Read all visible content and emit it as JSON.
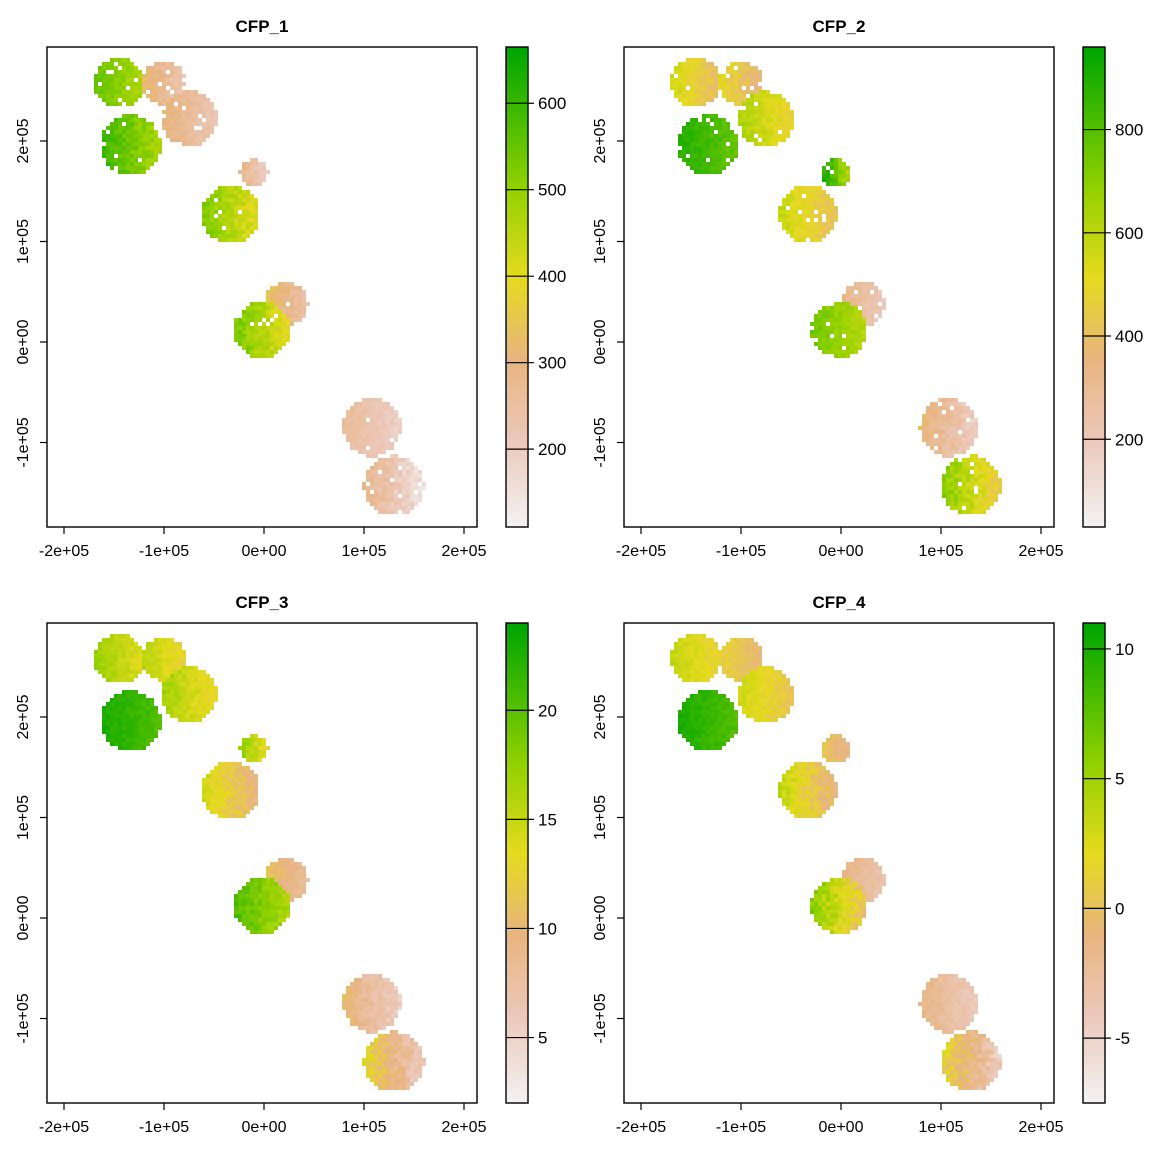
{
  "figure": {
    "background": "#ffffff"
  },
  "chart_data": [
    {
      "type": "heatmap",
      "title": "CFP_1",
      "xlim": [
        -200000,
        200000
      ],
      "ylim": [
        -170000,
        290000
      ],
      "x_ticks": [
        -200000,
        -100000,
        0,
        100000,
        200000
      ],
      "x_tick_labels": [
        "-2e+05",
        "-1e+05",
        "0e+00",
        "1e+05",
        "2e+05"
      ],
      "y_ticks": [
        -100000,
        0,
        100000,
        200000
      ],
      "y_tick_labels": [
        "-1e+05",
        "0e+00",
        "1e+05",
        "2e+05"
      ],
      "colorbar": {
        "min": 110,
        "max": 665,
        "ticks": [
          200,
          300,
          400,
          500,
          600
        ],
        "tick_labels": [
          "200",
          "300",
          "400",
          "500",
          "600"
        ],
        "palette": "terrain (white-pink-tan-yellow-green)"
      },
      "blobs": [
        {
          "x": -145000,
          "y": 258000,
          "r": 25000,
          "v": [
            0.62,
            0.82
          ]
        },
        {
          "x": -100000,
          "y": 258000,
          "r": 22000,
          "v": [
            0.18,
            0.42
          ]
        },
        {
          "x": -75000,
          "y": 222000,
          "r": 28000,
          "v": [
            0.18,
            0.38
          ]
        },
        {
          "x": -133000,
          "y": 196000,
          "r": 30000,
          "v": [
            0.62,
            0.92
          ]
        },
        {
          "x": -10000,
          "y": 168000,
          "r": 14000,
          "v": [
            0.12,
            0.35
          ]
        },
        {
          "x": -33000,
          "y": 127000,
          "r": 29000,
          "v": [
            0.48,
            0.78
          ]
        },
        {
          "x": 22000,
          "y": 38000,
          "r": 22000,
          "v": [
            0.2,
            0.45
          ]
        },
        {
          "x": -2000,
          "y": 12000,
          "r": 28000,
          "v": [
            0.48,
            0.8
          ]
        },
        {
          "x": 108000,
          "y": -85000,
          "r": 29000,
          "v": [
            0.12,
            0.3
          ]
        },
        {
          "x": 130000,
          "y": -143000,
          "r": 30000,
          "v": [
            0.04,
            0.35
          ]
        }
      ]
    },
    {
      "type": "heatmap",
      "title": "CFP_2",
      "xlim": [
        -200000,
        200000
      ],
      "ylim": [
        -170000,
        290000
      ],
      "x_ticks": [
        -200000,
        -100000,
        0,
        100000,
        200000
      ],
      "x_tick_labels": [
        "-2e+05",
        "-1e+05",
        "0e+00",
        "1e+05",
        "2e+05"
      ],
      "y_ticks": [
        -100000,
        0,
        100000,
        200000
      ],
      "y_tick_labels": [
        "-1e+05",
        "0e+00",
        "1e+05",
        "2e+05"
      ],
      "colorbar": {
        "min": 30,
        "max": 960,
        "ticks": [
          200,
          400,
          600,
          800
        ],
        "tick_labels": [
          "200",
          "400",
          "600",
          "800"
        ],
        "palette": "terrain (white-pink-tan-yellow-green)"
      },
      "blobs": [
        {
          "x": -145000,
          "y": 258000,
          "r": 25000,
          "v": [
            0.35,
            0.6
          ]
        },
        {
          "x": -100000,
          "y": 258000,
          "r": 22000,
          "v": [
            0.3,
            0.55
          ]
        },
        {
          "x": -75000,
          "y": 222000,
          "r": 28000,
          "v": [
            0.45,
            0.68
          ]
        },
        {
          "x": -133000,
          "y": 196000,
          "r": 30000,
          "v": [
            0.78,
            0.95
          ]
        },
        {
          "x": -5000,
          "y": 168000,
          "r": 14000,
          "v": [
            0.6,
            0.98
          ]
        },
        {
          "x": -33000,
          "y": 127000,
          "r": 29000,
          "v": [
            0.38,
            0.62
          ]
        },
        {
          "x": 22000,
          "y": 38000,
          "r": 22000,
          "v": [
            0.15,
            0.35
          ]
        },
        {
          "x": -2000,
          "y": 12000,
          "r": 28000,
          "v": [
            0.6,
            0.8
          ]
        },
        {
          "x": 108000,
          "y": -85000,
          "r": 29000,
          "v": [
            0.12,
            0.4
          ]
        },
        {
          "x": 130000,
          "y": -143000,
          "r": 30000,
          "v": [
            0.4,
            0.78
          ]
        }
      ]
    },
    {
      "type": "heatmap",
      "title": "CFP_3",
      "xlim": [
        -200000,
        200000
      ],
      "ylim": [
        -170000,
        290000
      ],
      "x_ticks": [
        -200000,
        -100000,
        0,
        100000,
        200000
      ],
      "x_tick_labels": [
        "-2e+05",
        "-1e+05",
        "0e+00",
        "1e+05",
        "2e+05"
      ],
      "y_ticks": [
        -100000,
        0,
        100000,
        200000
      ],
      "y_tick_labels": [
        "-1e+05",
        "0e+00",
        "1e+05",
        "2e+05"
      ],
      "colorbar": {
        "min": 2,
        "max": 24,
        "ticks": [
          5,
          10,
          15,
          20
        ],
        "tick_labels": [
          "5",
          "10",
          "15",
          "20"
        ],
        "palette": "terrain (white-pink-tan-yellow-green)"
      },
      "blobs": [
        {
          "x": -145000,
          "y": 258000,
          "r": 25000,
          "v": [
            0.5,
            0.72
          ]
        },
        {
          "x": -100000,
          "y": 258000,
          "r": 22000,
          "v": [
            0.45,
            0.65
          ]
        },
        {
          "x": -75000,
          "y": 222000,
          "r": 28000,
          "v": [
            0.45,
            0.7
          ]
        },
        {
          "x": -133000,
          "y": 196000,
          "r": 30000,
          "v": [
            0.82,
            0.97
          ]
        },
        {
          "x": -10000,
          "y": 168000,
          "r": 14000,
          "v": [
            0.45,
            0.75
          ]
        },
        {
          "x": -33000,
          "y": 127000,
          "r": 29000,
          "v": [
            0.3,
            0.6
          ]
        },
        {
          "x": 22000,
          "y": 38000,
          "r": 22000,
          "v": [
            0.25,
            0.45
          ]
        },
        {
          "x": -2000,
          "y": 12000,
          "r": 28000,
          "v": [
            0.6,
            0.88
          ]
        },
        {
          "x": 108000,
          "y": -85000,
          "r": 29000,
          "v": [
            0.12,
            0.4
          ]
        },
        {
          "x": 130000,
          "y": -143000,
          "r": 30000,
          "v": [
            0.12,
            0.55
          ]
        }
      ]
    },
    {
      "type": "heatmap",
      "title": "CFP_4",
      "xlim": [
        -200000,
        200000
      ],
      "ylim": [
        -170000,
        290000
      ],
      "x_ticks": [
        -200000,
        -100000,
        0,
        100000,
        200000
      ],
      "x_tick_labels": [
        "-2e+05",
        "-1e+05",
        "0e+00",
        "1e+05",
        "2e+05"
      ],
      "y_ticks": [
        -100000,
        0,
        100000,
        200000
      ],
      "y_tick_labels": [
        "-1e+05",
        "0e+00",
        "1e+05",
        "2e+05"
      ],
      "colorbar": {
        "min": -7.5,
        "max": 11,
        "ticks": [
          -5,
          0,
          5,
          10
        ],
        "tick_labels": [
          "-5",
          "0",
          "5",
          "10"
        ],
        "palette": "terrain (white-pink-tan-yellow-green)"
      },
      "blobs": [
        {
          "x": -145000,
          "y": 258000,
          "r": 25000,
          "v": [
            0.45,
            0.62
          ]
        },
        {
          "x": -100000,
          "y": 258000,
          "r": 22000,
          "v": [
            0.35,
            0.5
          ]
        },
        {
          "x": -75000,
          "y": 222000,
          "r": 28000,
          "v": [
            0.4,
            0.6
          ]
        },
        {
          "x": -133000,
          "y": 196000,
          "r": 30000,
          "v": [
            0.82,
            0.97
          ]
        },
        {
          "x": -5000,
          "y": 168000,
          "r": 14000,
          "v": [
            0.3,
            0.45
          ]
        },
        {
          "x": -33000,
          "y": 127000,
          "r": 29000,
          "v": [
            0.3,
            0.65
          ]
        },
        {
          "x": 22000,
          "y": 38000,
          "r": 22000,
          "v": [
            0.2,
            0.35
          ]
        },
        {
          "x": -2000,
          "y": 12000,
          "r": 28000,
          "v": [
            0.35,
            0.78
          ]
        },
        {
          "x": 108000,
          "y": -85000,
          "r": 29000,
          "v": [
            0.15,
            0.35
          ]
        },
        {
          "x": 130000,
          "y": -143000,
          "r": 30000,
          "v": [
            0.12,
            0.55
          ]
        }
      ]
    }
  ]
}
